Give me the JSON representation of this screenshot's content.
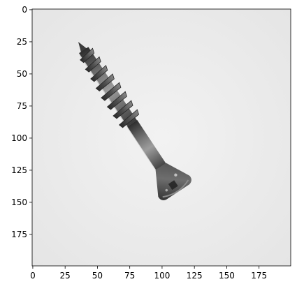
{
  "plot": {
    "image_subject": "screw-on-light-background",
    "x_range": [
      0,
      199
    ],
    "y_range": [
      0,
      199
    ],
    "y_inverted": true,
    "x_ticks": [
      {
        "value": 0,
        "label": "0"
      },
      {
        "value": 25,
        "label": "25"
      },
      {
        "value": 50,
        "label": "50"
      },
      {
        "value": 75,
        "label": "75"
      },
      {
        "value": 100,
        "label": "100"
      },
      {
        "value": 125,
        "label": "125"
      },
      {
        "value": 150,
        "label": "150"
      },
      {
        "value": 175,
        "label": "175"
      }
    ],
    "y_ticks": [
      {
        "value": 0,
        "label": "0"
      },
      {
        "value": 25,
        "label": "25"
      },
      {
        "value": 50,
        "label": "50"
      },
      {
        "value": 75,
        "label": "75"
      },
      {
        "value": 100,
        "label": "100"
      },
      {
        "value": 125,
        "label": "125"
      },
      {
        "value": 150,
        "label": "150"
      },
      {
        "value": 175,
        "label": "175"
      }
    ],
    "colors": {
      "background": "#ececec",
      "screw_dark": "#3a3a3a",
      "screw_mid": "#6b6b6b",
      "screw_light": "#9a9a9a"
    }
  }
}
